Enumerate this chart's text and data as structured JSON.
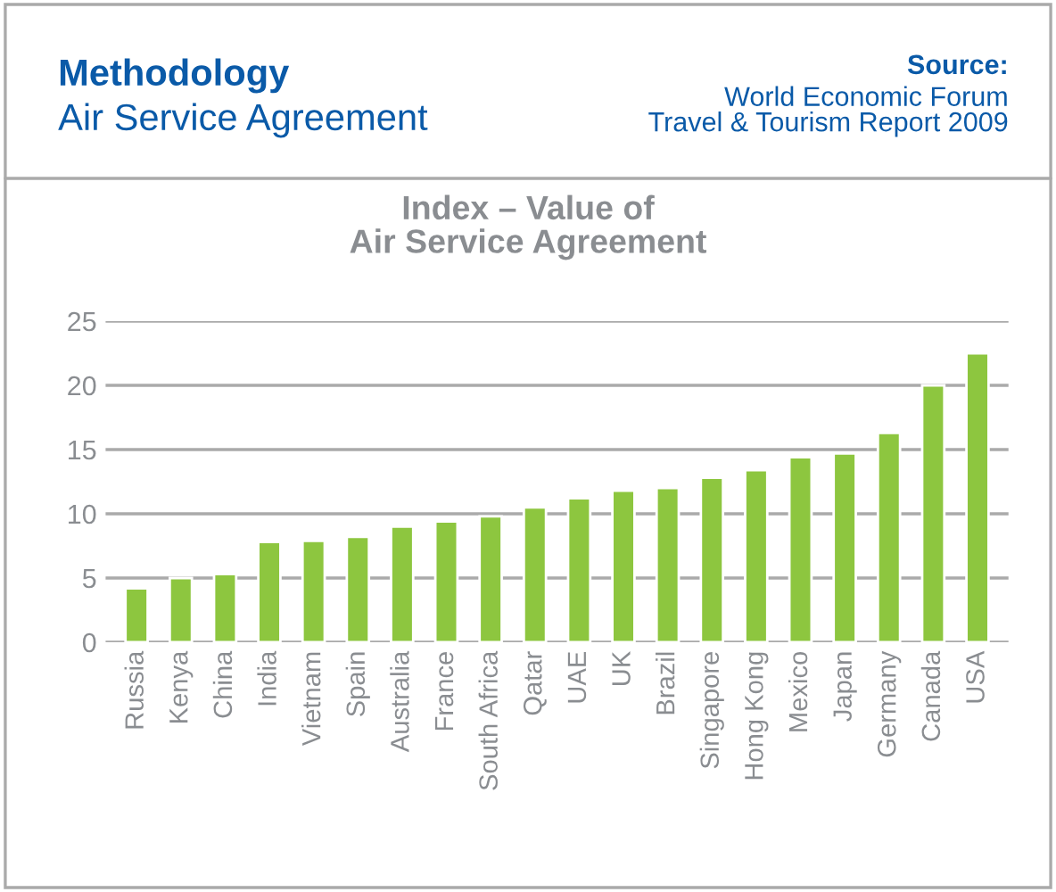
{
  "chart_data": {
    "type": "bar",
    "title": "Index – Value of\nAir Service Agreement",
    "annotations": [
      "Methodology",
      "Air Service Agreement",
      "Source:",
      "World Economic Forum\nTravel & Tourism Report 2009"
    ],
    "categories": [
      "Russia",
      "Kenya",
      "China",
      "India",
      "Vietnam",
      "Spain",
      "Australia",
      "France",
      "South Africa",
      "Qatar",
      "UAE",
      "UK",
      "Brazil",
      "Singapore",
      "Hong Kong",
      "Mexico",
      "Japan",
      "Germany",
      "Canada",
      "USA"
    ],
    "values": [
      4.2,
      5.0,
      5.3,
      7.8,
      7.9,
      8.2,
      9.0,
      9.4,
      9.8,
      10.5,
      11.2,
      11.8,
      12.0,
      12.8,
      13.4,
      14.4,
      14.7,
      16.3,
      20.0,
      22.5
    ],
    "color": "#8dc63f",
    "ylim": [
      0,
      25
    ],
    "yticks": [
      0,
      5,
      10,
      15,
      20,
      25
    ],
    "grid": "y"
  }
}
